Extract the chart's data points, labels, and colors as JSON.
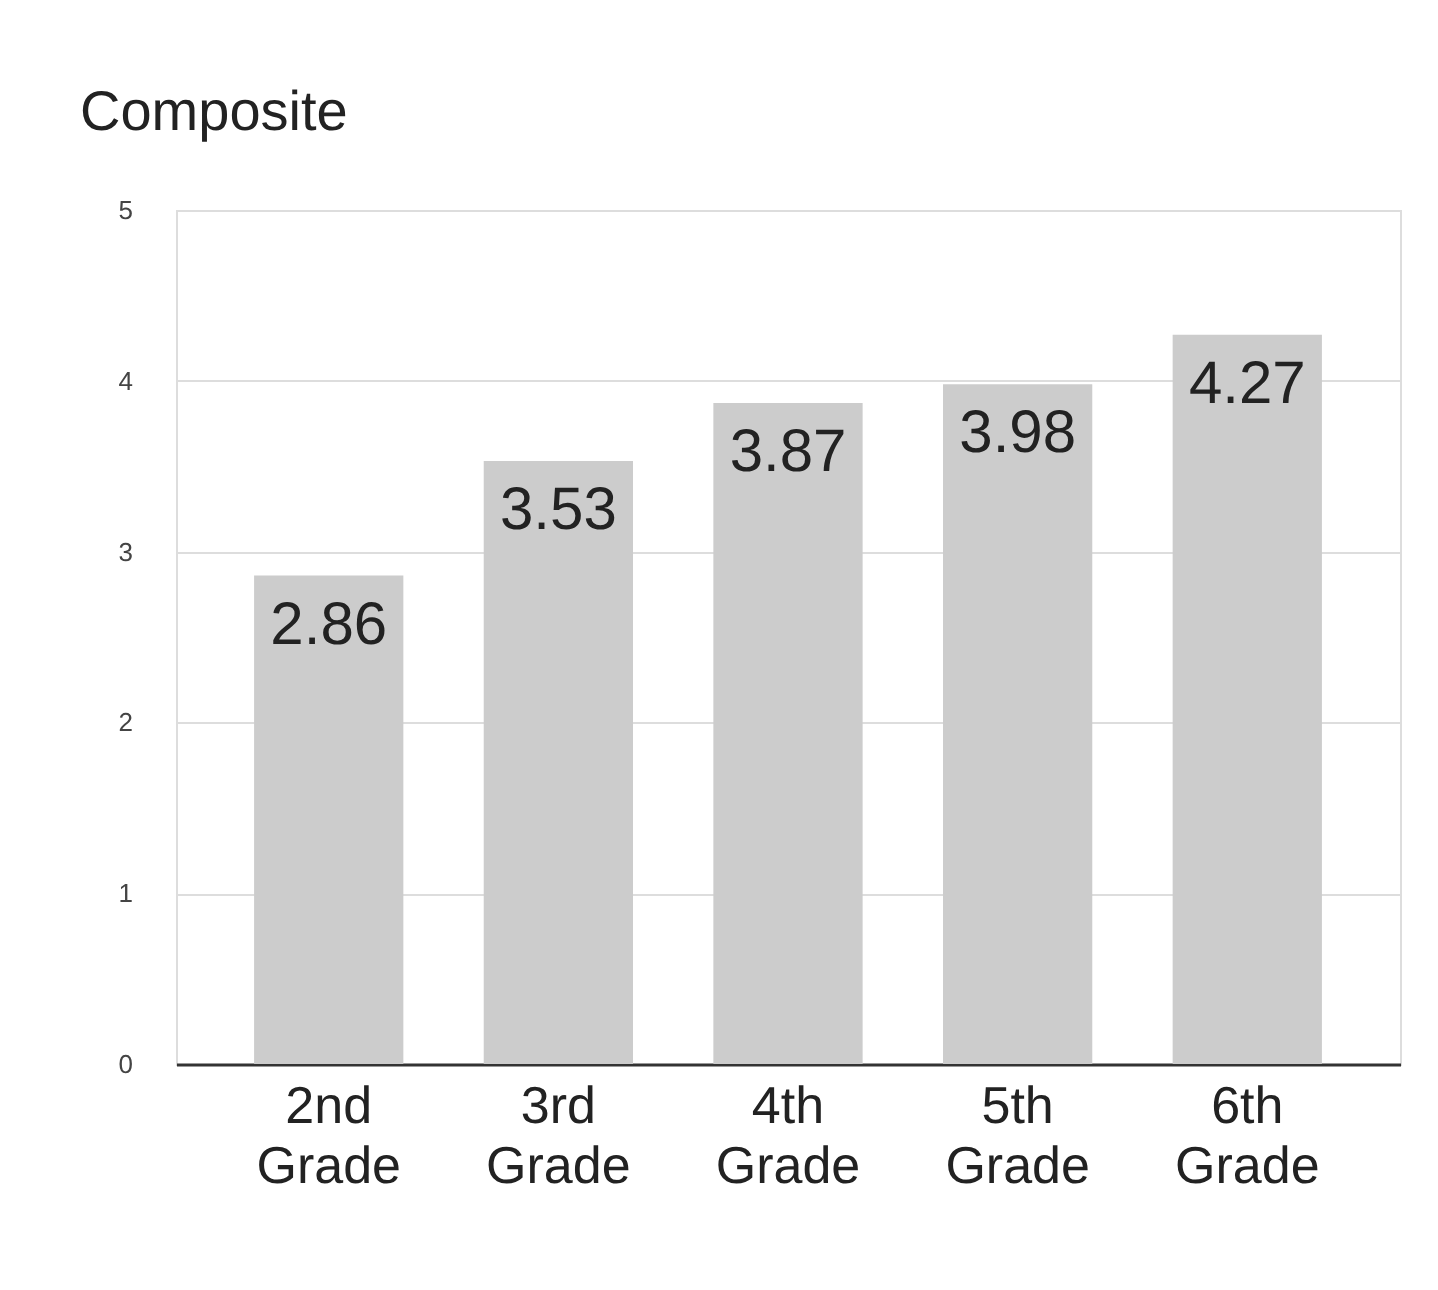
{
  "chart_data": {
    "type": "bar",
    "title": "Composite",
    "categories": [
      "2nd Grade",
      "3rd Grade",
      "4th Grade",
      "5th Grade",
      "6th Grade"
    ],
    "values": [
      2.86,
      3.53,
      3.87,
      3.98,
      4.27
    ],
    "color": "#cccccc",
    "ylim": [
      0,
      5
    ],
    "yticks": [
      0,
      1,
      2,
      3,
      4,
      5
    ],
    "grid": "y",
    "data_labels": true
  }
}
